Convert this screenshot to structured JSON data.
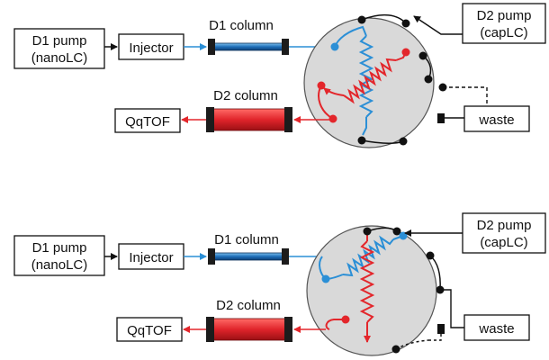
{
  "colors": {
    "blue_line": "#2b8fd6",
    "red_line": "#e3262b",
    "black_line": "#111111",
    "valve_fill": "#d9d9d9",
    "d1_column_blue": "#1f6fb8",
    "d2_column_red": "#e0242b"
  },
  "panels": [
    {
      "d1_pump": {
        "line1": "D1 pump",
        "line2": "(nanoLC)"
      },
      "injector": "Injector",
      "d1_column_label": "D1 column",
      "d2_column_label": "D2 column",
      "qqtof": "QqTOF",
      "d2_pump": {
        "line1": "D2 pump",
        "line2": "(capLC)"
      },
      "waste": "waste",
      "valve_state": "blue loop loading, red loop discharging"
    },
    {
      "d1_pump": {
        "line1": "D1 pump",
        "line2": "(nanoLC)"
      },
      "injector": "Injector",
      "d1_column_label": "D1 column",
      "d2_column_label": "D2 column",
      "qqtof": "QqTOF",
      "d2_pump": {
        "line1": "D2 pump",
        "line2": "(capLC)"
      },
      "waste": "waste",
      "valve_state": "red loop loading, blue loop discharging"
    }
  ]
}
